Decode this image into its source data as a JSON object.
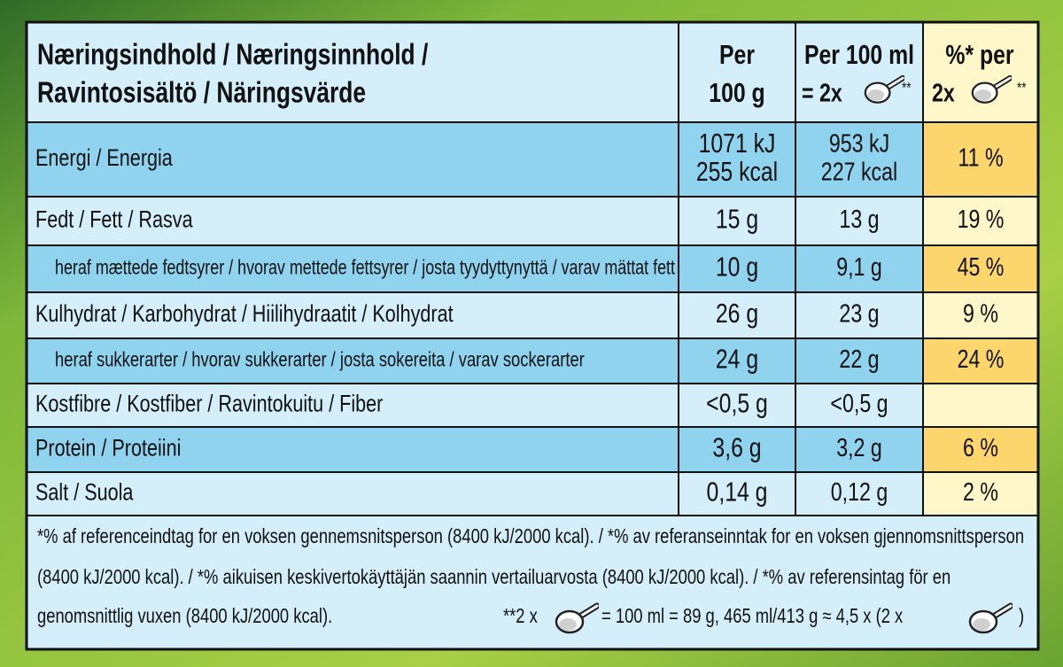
{
  "header": {
    "title_lines": [
      "Næringsindhold / Næringsinnhold /",
      "Ravintosisältö / Näringsvärde"
    ],
    "per_100g": [
      "Per",
      "100 g"
    ],
    "per_100ml": [
      "Per 100 ml",
      "= 2x",
      "**"
    ],
    "ri": [
      "%* per",
      "2x",
      "**"
    ]
  },
  "rows": [
    {
      "label": "Energi / Energia",
      "per_100g": [
        "1071 kJ",
        "255 kcal"
      ],
      "per_100ml": [
        "953 kJ",
        "227 kcal"
      ],
      "ri": "11 %"
    },
    {
      "label": "Fedt / Fett / Rasva",
      "per_100g": "15 g",
      "per_100ml": "13 g",
      "ri": "19 %"
    },
    {
      "label": "heraf mættede fedtsyrer / hvorav mettede fettsyrer / josta tyydyttynyttä / varav mättat fett",
      "per_100g": "10 g",
      "per_100ml": "9,1 g",
      "ri": "45 %"
    },
    {
      "label": "Kulhydrat / Karbohydrat / Hiilihydraatit / Kolhydrat",
      "per_100g": "26 g",
      "per_100ml": "23 g",
      "ri": "9 %"
    },
    {
      "label": "heraf sukkerarter / hvorav sukkerarter / josta sokereita / varav sockerarter",
      "per_100g": "24 g",
      "per_100ml": "22 g",
      "ri": "24 %"
    },
    {
      "label": "Kostfibre / Kostfiber / Ravintokuitu / Fiber",
      "per_100g": "<0,5 g",
      "per_100ml": "<0,5 g"
    },
    {
      "label": "Protein / Proteiini",
      "per_100g": "3,6 g",
      "per_100ml": "3,2 g",
      "ri": "6 %"
    },
    {
      "label": "Salt / Suola",
      "per_100g": "0,14 g",
      "per_100ml": "0,12 g",
      "ri": "2 %"
    }
  ],
  "footnote": {
    "lines": [
      "*% af referenceindtag for en voksen gennemsnitsperson (8400 kJ/2000 kcal). / *% av referanseinntak for en voksen gjennomsnittsperson",
      "(8400 kJ/2000 kcal). / *% aikuisen keskivertokäyttäjän saannin vertailuarvosta (8400 kJ/2000 kcal). / *% av referensintag för en",
      "genomsnittlig vuxen (8400 kJ/2000 kcal)."
    ],
    "serving": [
      "**2 x",
      "= 100 ml = 89 g, 465 ml/413 g ≈ 4,5 x (2 x",
      ")"
    ]
  }
}
